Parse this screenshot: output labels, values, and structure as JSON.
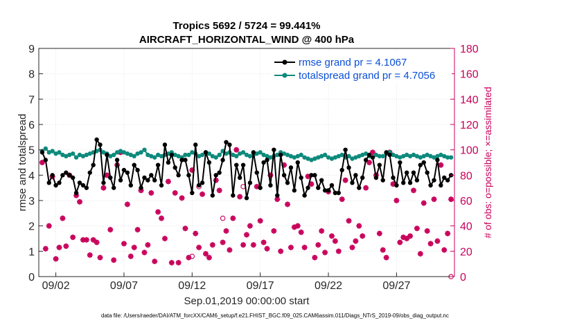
{
  "chart_data": {
    "type": "line",
    "title": "Tropics 5692 / 5724 = 99.441%",
    "subtitle": "AIRCRAFT_HORIZONTAL_WIND @ 400 hPa",
    "xlabel": "Sep.01,2019 00:00:00 start",
    "ylabel": "rmse and totalspread",
    "ylabel_right": "# of obs: o=possible; ×=assimilated",
    "footnote": "data file: /Users/raeder/DAI/ATM_forcXX/CAM6_setup/f.e21.FHIST_BGC.f09_025.CAM6assim.011/Diags_NTrS_2019-09/obs_diag_output.nc",
    "xlim": [
      0.75,
      31.25
    ],
    "ylim": [
      0,
      9
    ],
    "ylim_right": [
      0,
      180
    ],
    "x_ticks": [
      2,
      7,
      12,
      17,
      22,
      27
    ],
    "x_tick_labels": [
      "09/02",
      "09/07",
      "09/12",
      "09/17",
      "09/22",
      "09/27"
    ],
    "y_ticks": [
      0,
      1,
      2,
      3,
      4,
      5,
      6,
      7,
      8,
      9
    ],
    "y_ticks_right": [
      0,
      20,
      40,
      60,
      80,
      100,
      120,
      140,
      160,
      180
    ],
    "legend_location": "top-right",
    "x": [
      1.0,
      1.25,
      1.5,
      1.75,
      2.0,
      2.25,
      2.5,
      2.75,
      3.0,
      3.25,
      3.5,
      3.75,
      4.0,
      4.25,
      4.5,
      4.75,
      5.0,
      5.25,
      5.5,
      5.75,
      6.0,
      6.25,
      6.5,
      6.75,
      7.0,
      7.25,
      7.5,
      7.75,
      8.0,
      8.25,
      8.5,
      8.75,
      9.0,
      9.25,
      9.5,
      9.75,
      10.0,
      10.25,
      10.5,
      10.75,
      11.0,
      11.25,
      11.5,
      11.75,
      12.0,
      12.25,
      12.5,
      12.75,
      13.0,
      13.25,
      13.5,
      13.75,
      14.0,
      14.25,
      14.5,
      14.75,
      15.0,
      15.25,
      15.5,
      15.75,
      16.0,
      16.25,
      16.5,
      16.75,
      17.0,
      17.25,
      17.5,
      17.75,
      18.0,
      18.25,
      18.5,
      18.75,
      19.0,
      19.25,
      19.5,
      19.75,
      20.0,
      20.25,
      20.5,
      20.75,
      21.0,
      21.25,
      21.5,
      21.75,
      22.0,
      22.25,
      22.5,
      22.75,
      23.0,
      23.25,
      23.5,
      23.75,
      24.0,
      24.25,
      24.5,
      24.75,
      25.0,
      25.25,
      25.5,
      25.75,
      26.0,
      26.25,
      26.5,
      26.75,
      27.0,
      27.25,
      27.5,
      27.75,
      28.0,
      28.25,
      28.5,
      28.75,
      29.0,
      29.25,
      29.5,
      29.75,
      30.0,
      30.25,
      30.5,
      30.75,
      31.0
    ],
    "series": [
      {
        "name": "rmse grand pr = 4.1067",
        "axis": "left",
        "color": "#000000",
        "values": [
          4.9,
          4.6,
          3.7,
          4.0,
          3.6,
          3.7,
          4.0,
          4.1,
          4.0,
          3.9,
          3.3,
          3.7,
          3.6,
          3.5,
          4.1,
          4.4,
          5.4,
          5.2,
          3.7,
          4.8,
          3.9,
          3.5,
          4.6,
          3.8,
          4.2,
          4.1,
          3.6,
          4.4,
          4.2,
          3.5,
          3.9,
          3.8,
          4.0,
          3.8,
          4.4,
          3.6,
          5.2,
          4.5,
          4.8,
          4.3,
          4.0,
          4.6,
          4.6,
          4.0,
          3.3,
          5.2,
          3.6,
          3.7,
          4.9,
          4.5,
          3.2,
          4.0,
          4.1,
          4.6,
          5.3,
          5.2,
          3.2,
          4.4,
          3.9,
          4.4,
          3.1,
          3.7,
          4.9,
          4.1,
          3.5,
          4.5,
          4.6,
          3.6,
          5.0,
          3.2,
          4.8,
          4.0,
          3.7,
          4.3,
          3.4,
          4.5,
          3.9,
          3.2,
          3.5,
          4.0,
          4.0,
          3.5,
          3.8,
          3.4,
          3.4,
          3.6,
          3.3,
          3.3,
          4.2,
          5.0,
          4.3,
          3.7,
          4.0,
          3.5,
          3.9,
          4.6,
          4.8,
          4.7,
          3.9,
          4.4,
          3.8,
          4.9,
          4.8,
          3.9,
          3.6,
          4.5,
          3.7,
          4.1,
          3.7,
          4.1,
          3.8,
          4.4,
          4.5,
          4.1,
          3.6,
          3.8,
          4.6,
          3.6,
          3.9,
          3.8,
          4.0
        ]
      },
      {
        "name": "totalspread grand pr = 4.7056",
        "axis": "left",
        "color": "#0e8a7c",
        "values": [
          4.95,
          5.05,
          4.9,
          4.95,
          4.85,
          4.9,
          4.8,
          4.75,
          4.8,
          4.85,
          4.7,
          4.8,
          4.75,
          4.8,
          4.85,
          4.9,
          4.95,
          5.0,
          4.9,
          4.85,
          4.75,
          4.8,
          4.9,
          4.95,
          4.9,
          4.85,
          4.8,
          4.75,
          4.85,
          4.9,
          5.0,
          4.8,
          4.75,
          4.7,
          4.8,
          4.75,
          4.8,
          4.85,
          4.9,
          4.8,
          4.75,
          4.7,
          4.8,
          4.8,
          4.9,
          4.85,
          4.75,
          4.8,
          4.9,
          4.85,
          4.75,
          4.7,
          4.8,
          4.95,
          4.85,
          4.9,
          4.8,
          4.75,
          4.85,
          4.9,
          4.8,
          4.75,
          4.8,
          4.85,
          4.9,
          4.8,
          4.75,
          4.7,
          4.75,
          4.8,
          4.9,
          4.85,
          4.8,
          4.75,
          4.7,
          4.75,
          4.8,
          4.7,
          4.65,
          4.6,
          4.65,
          4.7,
          4.75,
          4.8,
          4.7,
          4.65,
          4.7,
          4.75,
          4.8,
          4.7,
          4.75,
          4.65,
          4.7,
          4.75,
          4.8,
          4.85,
          4.75,
          4.7,
          4.8,
          4.75,
          4.75,
          4.85,
          4.9,
          4.8,
          4.75,
          4.7,
          4.75,
          4.8,
          4.75,
          4.8,
          4.75,
          4.7,
          4.75,
          4.8,
          4.75,
          4.7,
          4.75,
          4.8,
          4.75,
          4.7,
          4.7
        ]
      },
      {
        "name": "obs assimilated",
        "axis": "right",
        "color": "#c8005a",
        "marker": "asterisk",
        "values": [
          90,
          22,
          40,
          79,
          14,
          23,
          46,
          24,
          80,
          31,
          64,
          59,
          29,
          29,
          17,
          29,
          27,
          15,
          70,
          80,
          37,
          13,
          88,
          98,
          26,
          57,
          16,
          23,
          37,
          68,
          19,
          25,
          66,
          12,
          51,
          46,
          30,
          75,
          11,
          66,
          11,
          62,
          38,
          15,
          84,
          34,
          23,
          65,
          18,
          15,
          25,
          76,
          68,
          27,
          36,
          21,
          46,
          100,
          63,
          25,
          33,
          40,
          25,
          71,
          44,
          27,
          22,
          80,
          36,
          61,
          20,
          88,
          57,
          23,
          39,
          40,
          35,
          23,
          79,
          73,
          15,
          25,
          36,
          19,
          67,
          32,
          28,
          20,
          61,
          76,
          44,
          23,
          28,
          40,
          32,
          70,
          90,
          98,
          80,
          34,
          21,
          15,
          98,
          73,
          60,
          27,
          31,
          30,
          32,
          68,
          38,
          18,
          58,
          36,
          26,
          61,
          28,
          88,
          21,
          34,
          61
        ]
      },
      {
        "name": "obs possible",
        "axis": "right",
        "color": "#c8005a",
        "marker": "circle",
        "values": [
          90,
          22,
          40,
          79,
          14,
          23,
          46,
          24,
          80,
          31,
          64,
          59,
          29,
          29,
          17,
          29,
          27,
          15,
          70,
          80,
          37,
          13,
          88,
          98,
          26,
          57,
          16,
          23,
          37,
          68,
          19,
          25,
          66,
          12,
          51,
          46,
          30,
          75,
          11,
          66,
          11,
          62,
          38,
          15,
          84,
          34,
          23,
          65,
          18,
          15,
          25,
          76,
          68,
          27,
          36,
          21,
          46,
          100,
          63,
          25,
          33,
          40,
          25,
          71,
          44,
          27,
          22,
          80,
          36,
          61,
          20,
          88,
          57,
          23,
          39,
          40,
          35,
          23,
          79,
          73,
          15,
          25,
          36,
          19,
          67,
          32,
          28,
          20,
          61,
          76,
          44,
          23,
          28,
          40,
          32,
          70,
          90,
          98,
          80,
          34,
          21,
          15,
          98,
          73,
          60,
          27,
          31,
          30,
          32,
          68,
          38,
          18,
          58,
          36,
          26,
          61,
          28,
          88,
          21,
          34,
          61
        ]
      }
    ],
    "extra_possible_circles": [
      {
        "x": 12.5,
        "y": 71
      },
      {
        "x": 12.0,
        "y": 16
      },
      {
        "x": 14.25,
        "y": 46
      },
      {
        "x": 15.75,
        "y": 71
      },
      {
        "x": 31.0,
        "y": 0
      }
    ],
    "legend": [
      {
        "label": "rmse grand pr = 4.1067",
        "color": "#000000"
      },
      {
        "label": "totalspread grand pr = 4.7056",
        "color": "#0e8a7c"
      }
    ]
  }
}
